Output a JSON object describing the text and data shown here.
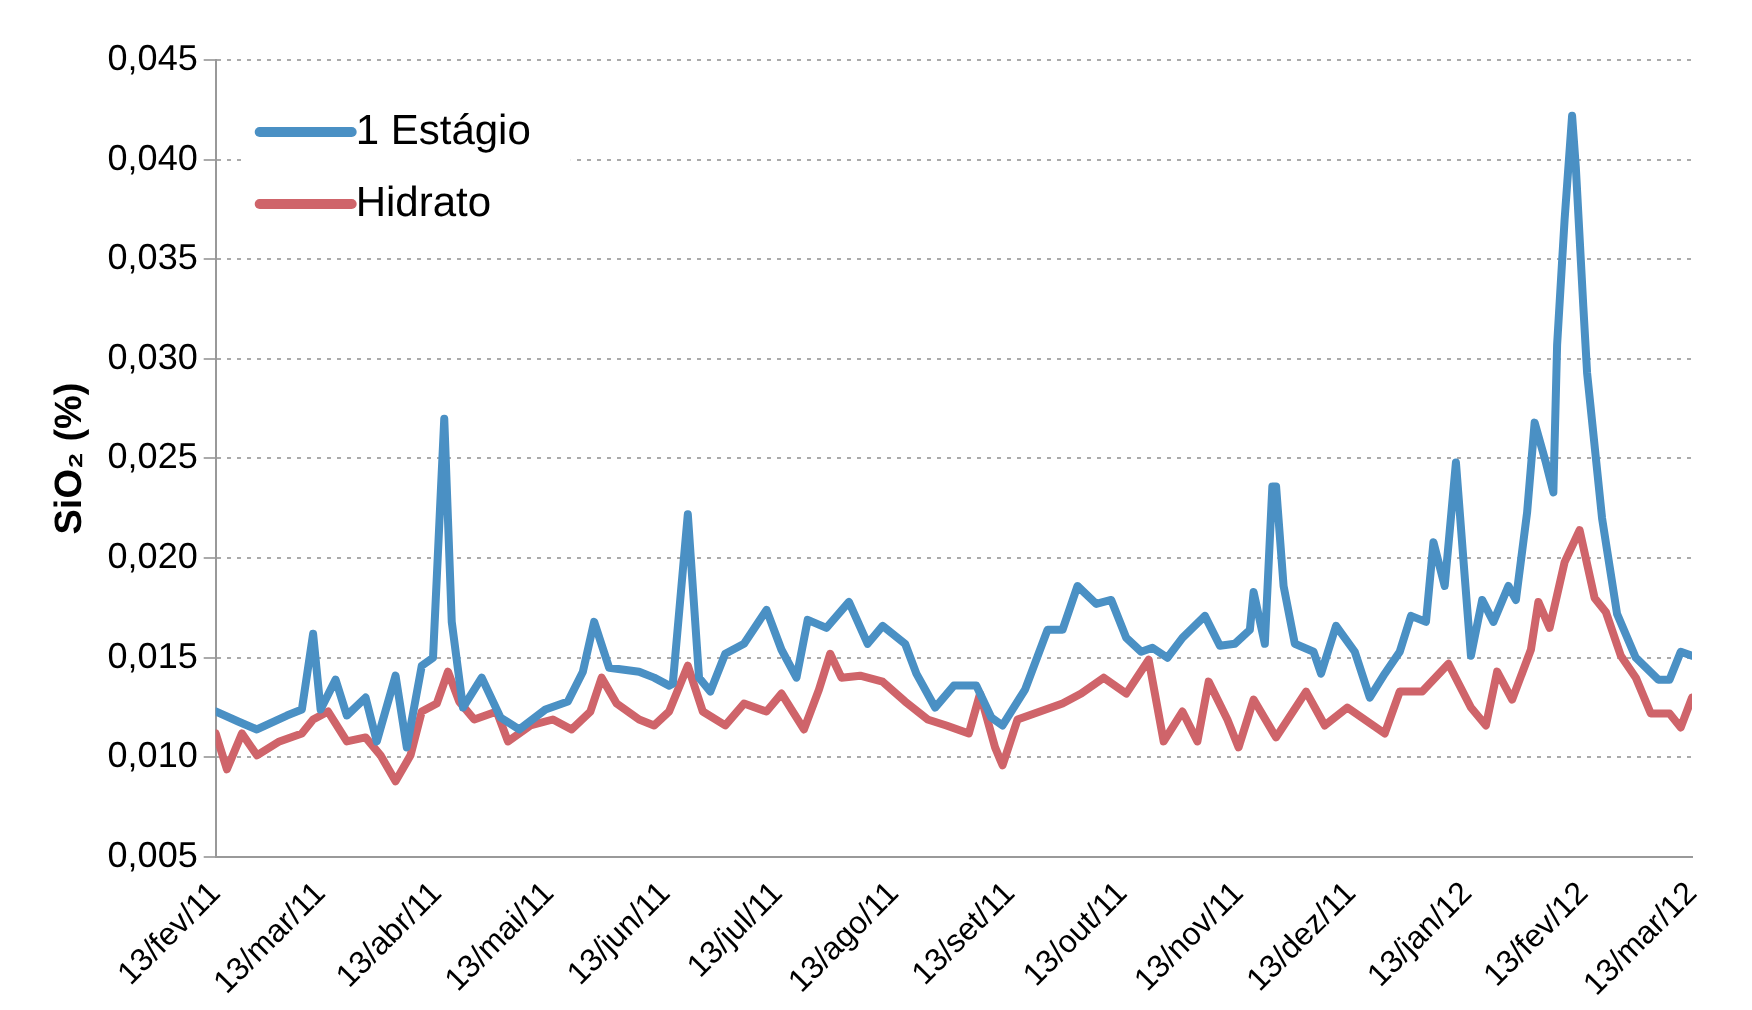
{
  "chart_data": {
    "type": "line",
    "ylabel": "SiO₂ (%)",
    "xlim": [
      "2011-02-13",
      "2012-03-13"
    ],
    "xticks": [
      {
        "value": "2011-02-13",
        "label": "13/fev/11"
      },
      {
        "value": "2011-03-13",
        "label": "13/mar/11"
      },
      {
        "value": "2011-04-13",
        "label": "13/abr/11"
      },
      {
        "value": "2011-05-13",
        "label": "13/mai/11"
      },
      {
        "value": "2011-06-13",
        "label": "13/jun/11"
      },
      {
        "value": "2011-07-13",
        "label": "13/jul/11"
      },
      {
        "value": "2011-08-13",
        "label": "13/ago/11"
      },
      {
        "value": "2011-09-13",
        "label": "13/set/11"
      },
      {
        "value": "2011-10-13",
        "label": "13/out/11"
      },
      {
        "value": "2011-11-13",
        "label": "13/nov/11"
      },
      {
        "value": "2011-12-13",
        "label": "13/dez/11"
      },
      {
        "value": "2012-01-13",
        "label": "13/jan/12"
      },
      {
        "value": "2012-02-13",
        "label": "13/fev/12"
      },
      {
        "value": "2012-03-13",
        "label": "13/mar/12"
      }
    ],
    "ylim": [
      0.005,
      0.045
    ],
    "yticks": [
      {
        "value": 0.005,
        "label": "0,005"
      },
      {
        "value": 0.01,
        "label": "0,010"
      },
      {
        "value": 0.015,
        "label": "0,015"
      },
      {
        "value": 0.02,
        "label": "0,020"
      },
      {
        "value": 0.025,
        "label": "0,025"
      },
      {
        "value": 0.03,
        "label": "0,030"
      },
      {
        "value": 0.035,
        "label": "0,035"
      },
      {
        "value": 0.04,
        "label": "0,040"
      },
      {
        "value": 0.045,
        "label": "0,045"
      }
    ],
    "grid": "y",
    "legend": "top left",
    "marker": "none",
    "line_style": "solid",
    "series": [
      {
        "name": "1 Estágio",
        "color": "#4a90c4",
        "x": [
          "2011-02-13",
          "2011-02-19",
          "2011-02-24",
          "2011-03-04",
          "2011-03-08",
          "2011-03-11",
          "2011-03-13",
          "2011-03-17",
          "2011-03-20",
          "2011-03-25",
          "2011-03-28",
          "2011-04-02",
          "2011-04-05",
          "2011-04-09",
          "2011-04-12",
          "2011-04-15",
          "2011-04-17",
          "2011-04-20",
          "2011-04-25",
          "2011-04-30",
          "2011-05-05",
          "2011-05-12",
          "2011-05-18",
          "2011-05-22",
          "2011-05-25",
          "2011-05-29",
          "2011-06-06",
          "2011-06-10",
          "2011-06-14",
          "2011-06-15",
          "2011-06-19",
          "2011-06-22",
          "2011-06-25",
          "2011-06-29",
          "2011-07-04",
          "2011-07-10",
          "2011-07-14",
          "2011-07-18",
          "2011-07-21",
          "2011-07-26",
          "2011-08-01",
          "2011-08-06",
          "2011-08-10",
          "2011-08-16",
          "2011-08-19",
          "2011-08-24",
          "2011-08-29",
          "2011-09-04",
          "2011-09-08",
          "2011-09-11",
          "2011-09-17",
          "2011-09-23",
          "2011-09-27",
          "2011-10-01",
          "2011-10-06",
          "2011-10-10",
          "2011-10-14",
          "2011-10-18",
          "2011-10-21",
          "2011-10-25",
          "2011-10-29",
          "2011-11-04",
          "2011-11-08",
          "2011-11-12",
          "2011-11-16",
          "2011-11-17",
          "2011-11-20",
          "2011-11-22",
          "2011-11-23",
          "2011-11-25",
          "2011-11-28",
          "2011-12-03",
          "2011-12-05",
          "2011-12-09",
          "2011-12-14",
          "2011-12-18",
          "2011-12-22",
          "2011-12-26",
          "2011-12-29",
          "2012-01-02",
          "2012-01-04",
          "2012-01-07",
          "2012-01-10",
          "2012-01-12",
          "2012-01-14",
          "2012-01-17",
          "2012-01-20",
          "2012-01-24",
          "2012-01-26",
          "2012-01-29",
          "2012-01-31",
          "2012-02-03",
          "2012-02-05",
          "2012-02-06",
          "2012-02-08",
          "2012-02-10",
          "2012-02-11",
          "2012-02-13",
          "2012-02-14",
          "2012-02-18",
          "2012-02-22",
          "2012-02-27",
          "2012-03-04",
          "2012-03-07",
          "2012-03-10",
          "2012-03-13"
        ],
        "values": [
          0.0123,
          0.0118,
          0.0114,
          0.0121,
          0.0124,
          0.0162,
          0.0124,
          0.0139,
          0.0121,
          0.013,
          0.0108,
          0.0141,
          0.0105,
          0.0146,
          0.015,
          0.027,
          0.0168,
          0.0125,
          0.014,
          0.012,
          0.0114,
          0.0124,
          0.0128,
          0.0143,
          0.0168,
          0.0145,
          0.0143,
          0.014,
          0.0136,
          0.0137,
          0.0222,
          0.014,
          0.0133,
          0.0152,
          0.0157,
          0.0174,
          0.0154,
          0.014,
          0.0169,
          0.0165,
          0.0178,
          0.0157,
          0.0166,
          0.0157,
          0.0142,
          0.0125,
          0.0136,
          0.0136,
          0.012,
          0.0116,
          0.0134,
          0.0164,
          0.0164,
          0.0186,
          0.0177,
          0.0179,
          0.016,
          0.0153,
          0.0155,
          0.015,
          0.016,
          0.0171,
          0.0156,
          0.0157,
          0.0164,
          0.0183,
          0.0157,
          0.0236,
          0.0236,
          0.0186,
          0.0157,
          0.0153,
          0.0142,
          0.0166,
          0.0153,
          0.013,
          0.0142,
          0.0153,
          0.0171,
          0.0168,
          0.0208,
          0.0186,
          0.0248,
          0.0199,
          0.0151,
          0.0179,
          0.0168,
          0.0186,
          0.0179,
          0.0223,
          0.0268,
          0.0248,
          0.0233,
          0.0307,
          0.037,
          0.0422,
          0.0396,
          0.0326,
          0.0293,
          0.022,
          0.0172,
          0.015,
          0.0139,
          0.0139,
          0.0153,
          0.0151
        ]
      },
      {
        "name": "Hidrato",
        "color": "#cf646a",
        "x": [
          "2011-02-13",
          "2011-02-16",
          "2011-02-20",
          "2011-02-24",
          "2011-03-02",
          "2011-03-08",
          "2011-03-11",
          "2011-03-15",
          "2011-03-20",
          "2011-03-25",
          "2011-03-29",
          "2011-04-02",
          "2011-04-06",
          "2011-04-09",
          "2011-04-13",
          "2011-04-16",
          "2011-04-19",
          "2011-04-23",
          "2011-04-29",
          "2011-05-02",
          "2011-05-08",
          "2011-05-14",
          "2011-05-19",
          "2011-05-24",
          "2011-05-27",
          "2011-05-31",
          "2011-06-06",
          "2011-06-10",
          "2011-06-14",
          "2011-06-19",
          "2011-06-23",
          "2011-06-29",
          "2011-07-04",
          "2011-07-10",
          "2011-07-14",
          "2011-07-20",
          "2011-07-24",
          "2011-07-27",
          "2011-07-30",
          "2011-08-04",
          "2011-08-10",
          "2011-08-16",
          "2011-08-22",
          "2011-08-27",
          "2011-09-02",
          "2011-09-05",
          "2011-09-09",
          "2011-09-11",
          "2011-09-15",
          "2011-09-21",
          "2011-09-27",
          "2011-10-02",
          "2011-10-08",
          "2011-10-14",
          "2011-10-20",
          "2011-10-24",
          "2011-10-29",
          "2011-11-02",
          "2011-11-05",
          "2011-11-10",
          "2011-11-13",
          "2011-11-17",
          "2011-11-23",
          "2011-12-01",
          "2011-12-06",
          "2011-12-12",
          "2011-12-22",
          "2011-12-26",
          "2012-01-01",
          "2012-01-08",
          "2012-01-14",
          "2012-01-18",
          "2012-01-21",
          "2012-01-25",
          "2012-01-30",
          "2012-02-01",
          "2012-02-04",
          "2012-02-08",
          "2012-02-12",
          "2012-02-16",
          "2012-02-19",
          "2012-02-23",
          "2012-02-27",
          "2012-03-02",
          "2012-03-07",
          "2012-03-10",
          "2012-03-13"
        ],
        "values": [
          0.0112,
          0.0094,
          0.0112,
          0.0101,
          0.0108,
          0.0112,
          0.0119,
          0.0123,
          0.0108,
          0.011,
          0.0101,
          0.0088,
          0.0101,
          0.0123,
          0.0127,
          0.0143,
          0.0128,
          0.0119,
          0.0123,
          0.0108,
          0.0116,
          0.0119,
          0.0114,
          0.0123,
          0.014,
          0.0127,
          0.0119,
          0.0116,
          0.0123,
          0.0146,
          0.0123,
          0.0116,
          0.0127,
          0.0123,
          0.0132,
          0.0114,
          0.0134,
          0.0152,
          0.014,
          0.0141,
          0.0138,
          0.0128,
          0.0119,
          0.0116,
          0.0112,
          0.0132,
          0.0105,
          0.0096,
          0.0119,
          0.0123,
          0.0127,
          0.0132,
          0.014,
          0.0132,
          0.0149,
          0.0108,
          0.0123,
          0.0108,
          0.0138,
          0.0119,
          0.0105,
          0.0129,
          0.011,
          0.0133,
          0.0116,
          0.0125,
          0.0112,
          0.0133,
          0.0133,
          0.0147,
          0.0125,
          0.0116,
          0.0143,
          0.0129,
          0.0154,
          0.0178,
          0.0165,
          0.0198,
          0.0214,
          0.018,
          0.0173,
          0.0151,
          0.014,
          0.0122,
          0.0122,
          0.0115,
          0.013
        ]
      }
    ]
  }
}
